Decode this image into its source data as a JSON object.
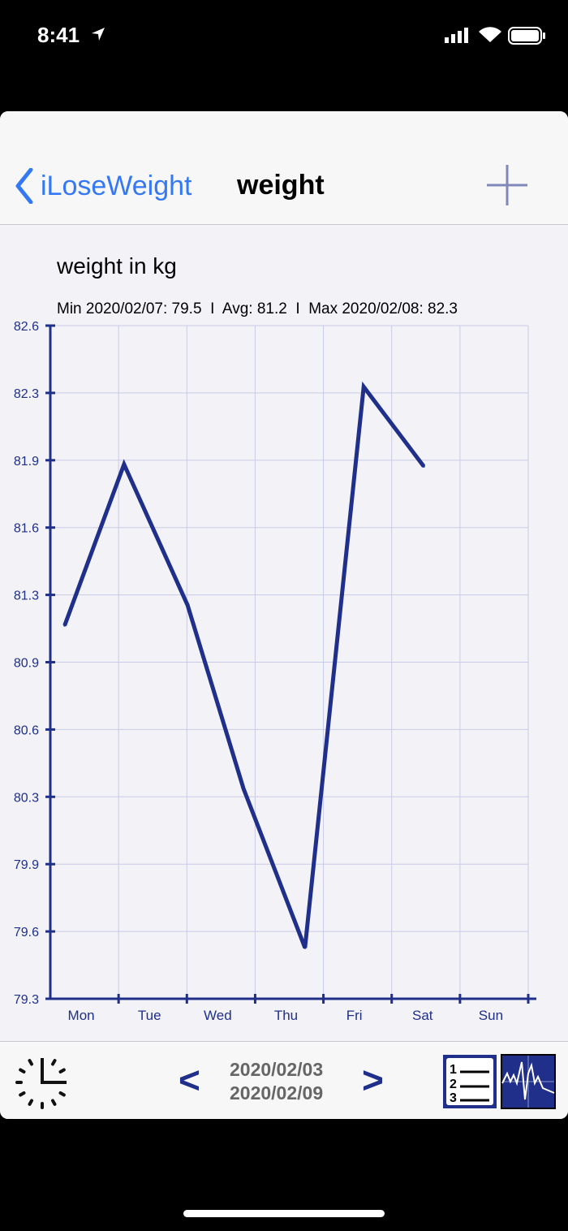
{
  "status_bar": {
    "time": "8:41"
  },
  "nav": {
    "back_label": "iLoseWeight",
    "title": "weight"
  },
  "chart_header": {
    "subtitle": "weight in kg",
    "stats": "Min 2020/02/07: 79.5  I  Avg: 81.2  I  Max 2020/02/08: 82.3"
  },
  "chart_data": {
    "type": "line",
    "categories": [
      "Mon",
      "Tue",
      "Wed",
      "Thu",
      "Fri",
      "Sat",
      "Sun"
    ],
    "y_ticks": [
      "82.6",
      "82.3",
      "81.9",
      "81.6",
      "81.3",
      "80.9",
      "80.6",
      "80.3",
      "79.9",
      "79.6",
      "79.3"
    ],
    "ylim": [
      79.3,
      82.6
    ],
    "grid": true,
    "series": [
      {
        "x": [
          0.21,
          1.08,
          2.01,
          2.83,
          3.73,
          4.59,
          5.47
        ],
        "values": [
          81.13,
          81.92,
          81.23,
          80.33,
          79.55,
          82.3,
          81.91
        ]
      }
    ],
    "colors": {
      "line": "#1f2f8a",
      "grid": "#c9cbe6",
      "axis": "#1f2f8a"
    }
  },
  "toolbar": {
    "start_date": "2020/02/03",
    "end_date": "2020/02/09",
    "prev": "<",
    "next": ">"
  }
}
